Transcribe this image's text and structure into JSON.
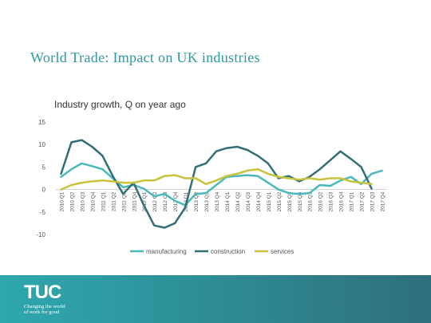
{
  "page": {
    "title": "World Trade: Impact on UK industries"
  },
  "footer": {
    "logo": "TUC",
    "tagline_1": "Changing the world",
    "tagline_2": "of work for good"
  },
  "colors": {
    "manufacturing": "#4bb8bd",
    "construction": "#326e77",
    "services": "#c9c23c",
    "title": "#2a9aa3"
  },
  "chart_data": {
    "type": "line",
    "title": "Industry growth, Q on year ago",
    "ylim": [
      -10,
      15
    ],
    "yticks": [
      15,
      10,
      5,
      0,
      -5,
      -10
    ],
    "grid": false,
    "legend_position": "bottom",
    "x": [
      "2010 Q1",
      "2010 Q2",
      "2010 Q3",
      "2010 Q4",
      "2011 Q1",
      "2011 Q2",
      "2011 Q3",
      "2011 Q4",
      "2012 Q1",
      "2012 Q2",
      "2012 Q3",
      "2012 Q4",
      "2013 Q1",
      "2013 Q2",
      "2013 Q3",
      "2013 Q4",
      "2014 Q1",
      "2014 Q2",
      "2014 Q3",
      "2014 Q4",
      "2015 Q1",
      "2015 Q2",
      "2015 Q3",
      "2015 Q4",
      "2016 Q1",
      "2016 Q2",
      "2016 Q3",
      "2016 Q4",
      "2017 Q1",
      "2017 Q2",
      "2017 Q3",
      "2017 Q4"
    ],
    "series": [
      {
        "name": "manufacturing",
        "values": [
          2.8,
          4.5,
          5.8,
          5.2,
          4.5,
          2.5,
          0.5,
          1.0,
          0.2,
          -1.5,
          -1.0,
          -2.5,
          -3.5,
          -1.0,
          -0.8,
          1.0,
          2.8,
          3.0,
          3.2,
          3.0,
          1.5,
          0.0,
          -0.8,
          -1.0,
          -0.8,
          1.0,
          0.8,
          2.0,
          2.8,
          1.2,
          3.5,
          4.2
        ]
      },
      {
        "name": "construction",
        "values": [
          3.5,
          10.5,
          11.0,
          9.5,
          7.5,
          3.0,
          -1.0,
          1.5,
          -3.5,
          -8.0,
          -8.5,
          -7.5,
          -4.0,
          5.0,
          5.8,
          8.5,
          9.2,
          9.5,
          8.8,
          7.5,
          5.8,
          2.5,
          3.0,
          1.8,
          2.8,
          4.5,
          6.5,
          8.5,
          6.8,
          5.0,
          0.2,
          null
        ]
      },
      {
        "name": "services",
        "values": [
          0.0,
          1.0,
          1.5,
          1.8,
          2.0,
          1.8,
          1.5,
          1.5,
          2.0,
          2.0,
          3.0,
          3.2,
          2.5,
          2.5,
          1.2,
          2.0,
          3.0,
          3.5,
          4.2,
          4.5,
          3.5,
          2.8,
          2.5,
          2.2,
          2.5,
          2.2,
          2.5,
          2.5,
          1.8,
          1.5,
          1.2,
          null
        ]
      }
    ]
  }
}
